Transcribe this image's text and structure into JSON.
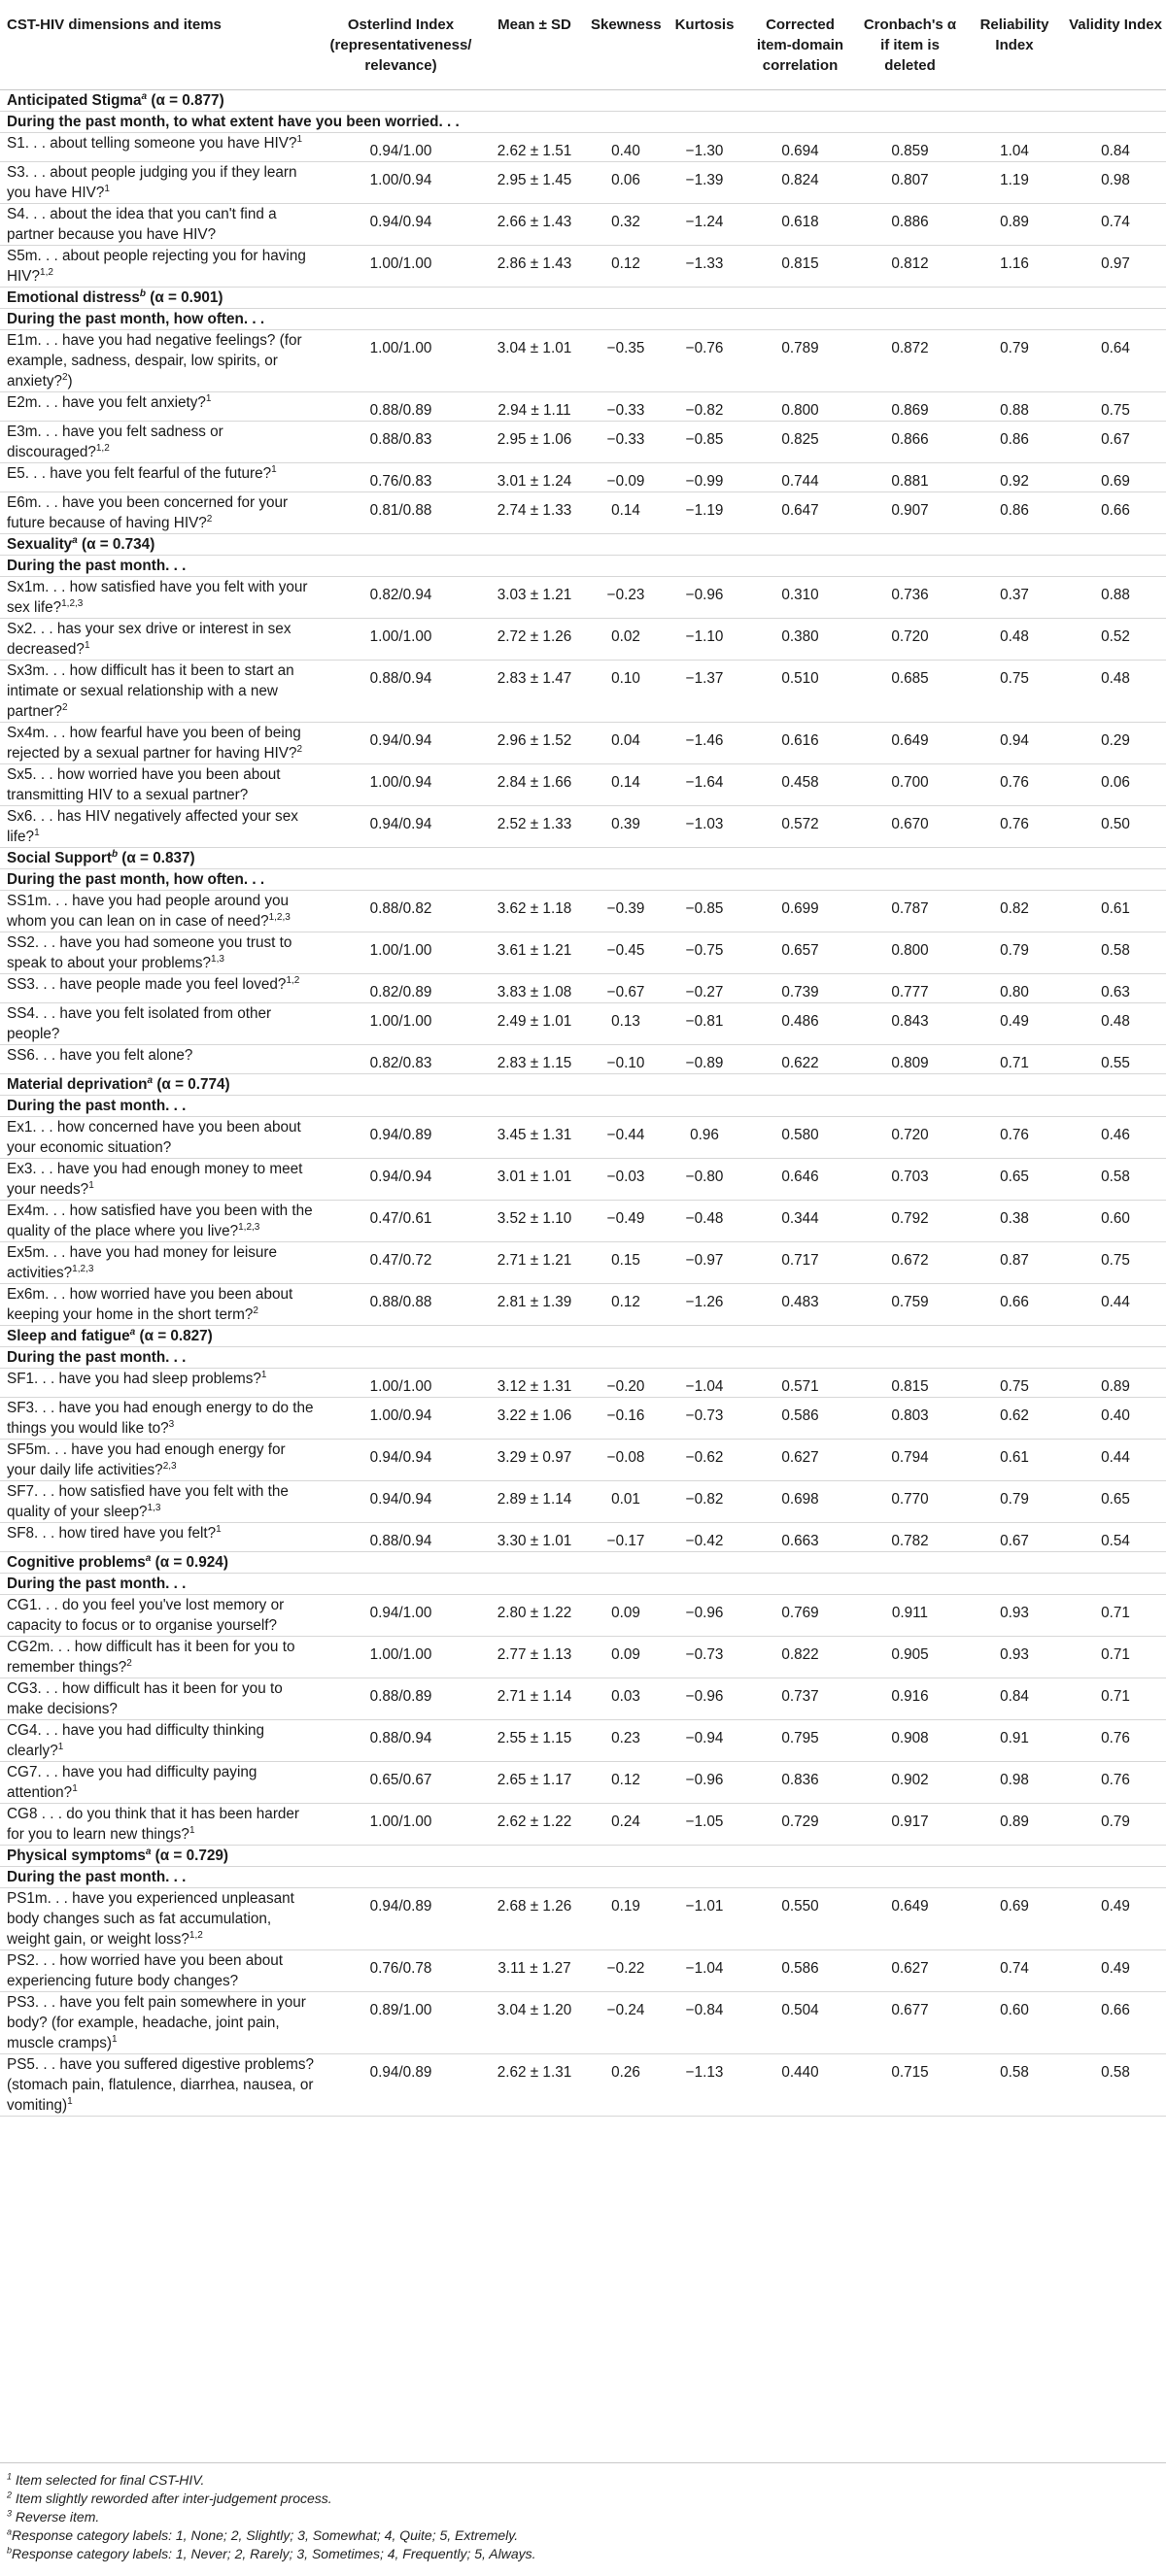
{
  "headers": {
    "item": "CST-HIV dimensions and items",
    "osterlind": "Osterlind Index (representativeness/ relevance)",
    "mean": "Mean ± SD",
    "skew": "Skewness",
    "kurt": "Kurtosis",
    "corr": "Corrected item-domain correlation",
    "alpha": "Cronbach's α if item is deleted",
    "rel": "Reliability Index",
    "val": "Validity Index"
  },
  "sections": [
    {
      "name": "Anticipated Stigma",
      "sup": "a",
      "alpha": " (α = 0.877)",
      "question": "During the past month, to what extent have you been worried. . .",
      "rows": [
        {
          "text": "S1. . . about telling someone you have HIV?",
          "sup": "1",
          "osterlind": "0.94/1.00",
          "mean": "2.62 ± 1.51",
          "skew": "0.40",
          "kurt": "−1.30",
          "corr": "0.694",
          "alpha": "0.859",
          "rel": "1.04",
          "val": "0.84"
        },
        {
          "text": "S3. . . about people judging you if they learn you have HIV?",
          "sup": "1",
          "osterlind": "1.00/0.94",
          "mean": "2.95 ± 1.45",
          "skew": "0.06",
          "kurt": "−1.39",
          "corr": "0.824",
          "alpha": "0.807",
          "rel": "1.19",
          "val": "0.98"
        },
        {
          "text": "S4. . . about the idea that you can't find a partner because you have HIV?",
          "sup": "",
          "osterlind": "0.94/0.94",
          "mean": "2.66 ± 1.43",
          "skew": "0.32",
          "kurt": "−1.24",
          "corr": "0.618",
          "alpha": "0.886",
          "rel": "0.89",
          "val": "0.74"
        },
        {
          "text": "S5m. . . about people rejecting you for having HIV?",
          "sup": "1,2",
          "osterlind": "1.00/1.00",
          "mean": "2.86 ± 1.43",
          "skew": "0.12",
          "kurt": "−1.33",
          "corr": "0.815",
          "alpha": "0.812",
          "rel": "1.16",
          "val": "0.97"
        }
      ]
    },
    {
      "name": "Emotional distress",
      "sup": "b",
      "alpha": " (α = 0.901)",
      "question": "During the past month, how often. . .",
      "rows": [
        {
          "text": "E1m. . . have you had negative feelings? (for example, sadness, despair, low spirits, or anxiety?",
          "sup": "2",
          "close": ")",
          "osterlind": "1.00/1.00",
          "mean": "3.04 ± 1.01",
          "skew": "−0.35",
          "kurt": "−0.76",
          "corr": "0.789",
          "alpha": "0.872",
          "rel": "0.79",
          "val": "0.64"
        },
        {
          "text": "E2m. . . have you felt anxiety?",
          "sup": "1",
          "osterlind": "0.88/0.89",
          "mean": "2.94 ± 1.11",
          "skew": "−0.33",
          "kurt": "−0.82",
          "corr": "0.800",
          "alpha": "0.869",
          "rel": "0.88",
          "val": "0.75"
        },
        {
          "text": "E3m. . . have you felt sadness or discouraged?",
          "sup": "1,2",
          "osterlind": "0.88/0.83",
          "mean": "2.95 ± 1.06",
          "skew": "−0.33",
          "kurt": "−0.85",
          "corr": "0.825",
          "alpha": "0.866",
          "rel": "0.86",
          "val": "0.67"
        },
        {
          "text": "E5. . . have you felt fearful of the future?",
          "sup": "1",
          "osterlind": "0.76/0.83",
          "mean": "3.01 ± 1.24",
          "skew": "−0.09",
          "kurt": "−0.99",
          "corr": "0.744",
          "alpha": "0.881",
          "rel": "0.92",
          "val": "0.69"
        },
        {
          "text": "E6m. . . have you been concerned for your future because of having HIV?",
          "sup": "2",
          "osterlind": "0.81/0.88",
          "mean": "2.74 ± 1.33",
          "skew": "0.14",
          "kurt": "−1.19",
          "corr": "0.647",
          "alpha": "0.907",
          "rel": "0.86",
          "val": "0.66"
        }
      ]
    },
    {
      "name": "Sexuality",
      "sup": "a",
      "alpha": " (α = 0.734)",
      "question": "During the past month. . .",
      "rows": [
        {
          "text": "Sx1m. . . how satisfied have you felt with your sex life?",
          "sup": "1,2,3",
          "osterlind": "0.82/0.94",
          "mean": "3.03 ± 1.21",
          "skew": "−0.23",
          "kurt": "−0.96",
          "corr": "0.310",
          "alpha": "0.736",
          "rel": "0.37",
          "val": "0.88"
        },
        {
          "text": "Sx2. . . has your sex drive or interest in sex decreased?",
          "sup": "1",
          "osterlind": "1.00/1.00",
          "mean": "2.72 ± 1.26",
          "skew": "0.02",
          "kurt": "−1.10",
          "corr": "0.380",
          "alpha": "0.720",
          "rel": "0.48",
          "val": "0.52"
        },
        {
          "text": "Sx3m. . . how difficult has it been to start an intimate or sexual relationship with a new partner?",
          "sup": "2",
          "osterlind": "0.88/0.94",
          "mean": "2.83 ± 1.47",
          "skew": "0.10",
          "kurt": "−1.37",
          "corr": "0.510",
          "alpha": "0.685",
          "rel": "0.75",
          "val": "0.48"
        },
        {
          "text": "Sx4m. . . how fearful have you been of being rejected by a sexual partner for having HIV?",
          "sup": "2",
          "osterlind": "0.94/0.94",
          "mean": "2.96 ± 1.52",
          "skew": "0.04",
          "kurt": "−1.46",
          "corr": "0.616",
          "alpha": "0.649",
          "rel": "0.94",
          "val": "0.29"
        },
        {
          "text": "Sx5. . . how worried have you been about transmitting HIV to a sexual partner?",
          "sup": "",
          "osterlind": "1.00/0.94",
          "mean": "2.84 ± 1.66",
          "skew": "0.14",
          "kurt": "−1.64",
          "corr": "0.458",
          "alpha": "0.700",
          "rel": "0.76",
          "val": "0.06"
        },
        {
          "text": "Sx6. . . has HIV negatively affected your sex life?",
          "sup": "1",
          "osterlind": "0.94/0.94",
          "mean": "2.52 ± 1.33",
          "skew": "0.39",
          "kurt": "−1.03",
          "corr": "0.572",
          "alpha": "0.670",
          "rel": "0.76",
          "val": "0.50"
        }
      ]
    },
    {
      "name": "Social Support",
      "sup": "b",
      "alpha": " (α = 0.837)",
      "question": "During the past month, how often. . .",
      "rows": [
        {
          "text": "SS1m. . . have you had people around you whom you can lean on in case of need?",
          "sup": "1,2,3",
          "osterlind": "0.88/0.82",
          "mean": "3.62 ± 1.18",
          "skew": "−0.39",
          "kurt": "−0.85",
          "corr": "0.699",
          "alpha": "0.787",
          "rel": "0.82",
          "val": "0.61"
        },
        {
          "text": "SS2. . . have you had someone you trust to speak to about your problems?",
          "sup": "1,3",
          "osterlind": "1.00/1.00",
          "mean": "3.61 ± 1.21",
          "skew": "−0.45",
          "kurt": "−0.75",
          "corr": "0.657",
          "alpha": "0.800",
          "rel": "0.79",
          "val": "0.58"
        },
        {
          "text": "SS3. . . have people made you feel loved?",
          "sup": "1,2",
          "osterlind": "0.82/0.89",
          "mean": "3.83 ± 1.08",
          "skew": "−0.67",
          "kurt": "−0.27",
          "corr": "0.739",
          "alpha": "0.777",
          "rel": "0.80",
          "val": "0.63"
        },
        {
          "text": "SS4. . . have you felt isolated from other people?",
          "sup": "",
          "osterlind": "1.00/1.00",
          "mean": "2.49 ± 1.01",
          "skew": "0.13",
          "kurt": "−0.81",
          "corr": "0.486",
          "alpha": "0.843",
          "rel": "0.49",
          "val": "0.48"
        },
        {
          "text": "SS6. . . have you felt alone?",
          "sup": "",
          "osterlind": "0.82/0.83",
          "mean": "2.83 ± 1.15",
          "skew": "−0.10",
          "kurt": "−0.89",
          "corr": "0.622",
          "alpha": "0.809",
          "rel": "0.71",
          "val": "0.55"
        }
      ]
    },
    {
      "name": "Material deprivation",
      "sup": "a",
      "alpha": " (α = 0.774)",
      "question": "During the past month. . .",
      "rows": [
        {
          "text": "Ex1. . . how concerned have you been about your economic situation?",
          "sup": "",
          "osterlind": "0.94/0.89",
          "mean": "3.45 ± 1.31",
          "skew": "−0.44",
          "kurt": "0.96",
          "corr": "0.580",
          "alpha": "0.720",
          "rel": "0.76",
          "val": "0.46"
        },
        {
          "text": "Ex3. . . have you had enough money to meet your needs?",
          "sup": "1",
          "osterlind": "0.94/0.94",
          "mean": "3.01 ± 1.01",
          "skew": "−0.03",
          "kurt": "−0.80",
          "corr": "0.646",
          "alpha": "0.703",
          "rel": "0.65",
          "val": "0.58"
        },
        {
          "text": "Ex4m. . . how satisfied have you been with the quality of the place where you live?",
          "sup": "1,2,3",
          "osterlind": "0.47/0.61",
          "mean": "3.52 ± 1.10",
          "skew": "−0.49",
          "kurt": "−0.48",
          "corr": "0.344",
          "alpha": "0.792",
          "rel": "0.38",
          "val": "0.60"
        },
        {
          "text": "Ex5m. . . have you had money for leisure activities?",
          "sup": "1,2,3",
          "osterlind": "0.47/0.72",
          "mean": "2.71 ± 1.21",
          "skew": "0.15",
          "kurt": "−0.97",
          "corr": "0.717",
          "alpha": "0.672",
          "rel": "0.87",
          "val": "0.75"
        },
        {
          "text": "Ex6m. . . how worried have you been about keeping your home in the short term?",
          "sup": "2",
          "osterlind": "0.88/0.88",
          "mean": "2.81 ± 1.39",
          "skew": "0.12",
          "kurt": "−1.26",
          "corr": "0.483",
          "alpha": "0.759",
          "rel": "0.66",
          "val": "0.44"
        }
      ]
    },
    {
      "name": "Sleep and fatigue",
      "sup": "a",
      "alpha": " (α = 0.827)",
      "question": "During the past month. . .",
      "rows": [
        {
          "text": "SF1. . . have you had sleep problems?",
          "sup": "1",
          "osterlind": "1.00/1.00",
          "mean": "3.12 ± 1.31",
          "skew": "−0.20",
          "kurt": "−1.04",
          "corr": "0.571",
          "alpha": "0.815",
          "rel": "0.75",
          "val": "0.89"
        },
        {
          "text": "SF3. . . have you had enough energy to do the things you would like to?",
          "sup": "3",
          "osterlind": "1.00/0.94",
          "mean": "3.22 ± 1.06",
          "skew": "−0.16",
          "kurt": "−0.73",
          "corr": "0.586",
          "alpha": "0.803",
          "rel": "0.62",
          "val": "0.40"
        },
        {
          "text": "SF5m. . . have you had enough energy for your daily life activities?",
          "sup": "2,3",
          "osterlind": "0.94/0.94",
          "mean": "3.29 ± 0.97",
          "skew": "−0.08",
          "kurt": "−0.62",
          "corr": "0.627",
          "alpha": "0.794",
          "rel": "0.61",
          "val": "0.44"
        },
        {
          "text": "SF7. . . how satisfied have you felt with the quality of your sleep?",
          "sup": "1,3",
          "osterlind": "0.94/0.94",
          "mean": "2.89 ± 1.14",
          "skew": "0.01",
          "kurt": "−0.82",
          "corr": "0.698",
          "alpha": "0.770",
          "rel": "0.79",
          "val": "0.65"
        },
        {
          "text": "SF8. . . how tired have you felt?",
          "sup": "1",
          "osterlind": "0.88/0.94",
          "mean": "3.30 ± 1.01",
          "skew": "−0.17",
          "kurt": "−0.42",
          "corr": "0.663",
          "alpha": "0.782",
          "rel": "0.67",
          "val": "0.54"
        }
      ]
    },
    {
      "name": "Cognitive problems",
      "sup": "a",
      "alpha": " (α = 0.924)",
      "question": "During the past month. . .",
      "rows": [
        {
          "text": "CG1. . . do you feel you've lost memory or capacity to focus or to organise yourself?",
          "sup": "",
          "osterlind": "0.94/1.00",
          "mean": "2.80 ± 1.22",
          "skew": "0.09",
          "kurt": "−0.96",
          "corr": "0.769",
          "alpha": "0.911",
          "rel": "0.93",
          "val": "0.71"
        },
        {
          "text": "CG2m. . . how difficult has it been for you to remember things?",
          "sup": "2",
          "osterlind": "1.00/1.00",
          "mean": "2.77 ± 1.13",
          "skew": "0.09",
          "kurt": "−0.73",
          "corr": "0.822",
          "alpha": "0.905",
          "rel": "0.93",
          "val": "0.71"
        },
        {
          "text": "CG3. . . how difficult has it been for you to make decisions?",
          "sup": "",
          "osterlind": "0.88/0.89",
          "mean": "2.71 ± 1.14",
          "skew": "0.03",
          "kurt": "−0.96",
          "corr": "0.737",
          "alpha": "0.916",
          "rel": "0.84",
          "val": "0.71"
        },
        {
          "text": "CG4. . . have you had difficulty thinking clearly?",
          "sup": "1",
          "osterlind": "0.88/0.94",
          "mean": "2.55 ± 1.15",
          "skew": "0.23",
          "kurt": "−0.94",
          "corr": "0.795",
          "alpha": "0.908",
          "rel": "0.91",
          "val": "0.76"
        },
        {
          "text": "CG7. . . have you had difficulty paying attention?",
          "sup": "1",
          "osterlind": "0.65/0.67",
          "mean": "2.65 ± 1.17",
          "skew": "0.12",
          "kurt": "−0.96",
          "corr": "0.836",
          "alpha": "0.902",
          "rel": "0.98",
          "val": "0.76"
        },
        {
          "text": "CG8 . . . do you think that it has been harder for you to learn new things?",
          "sup": "1",
          "osterlind": "1.00/1.00",
          "mean": "2.62 ± 1.22",
          "skew": "0.24",
          "kurt": "−1.05",
          "corr": "0.729",
          "alpha": "0.917",
          "rel": "0.89",
          "val": "0.79"
        }
      ]
    },
    {
      "name": "Physical symptoms",
      "sup": "a",
      "alpha": " (α = 0.729)",
      "question": "During the past month. . .",
      "rows": [
        {
          "text": "PS1m. . . have you experienced unpleasant body changes such as fat accumulation, weight gain, or weight loss?",
          "sup": "1,2",
          "osterlind": "0.94/0.89",
          "mean": "2.68 ± 1.26",
          "skew": "0.19",
          "kurt": "−1.01",
          "corr": "0.550",
          "alpha": "0.649",
          "rel": "0.69",
          "val": "0.49"
        },
        {
          "text": "PS2. . . how worried have you been about experiencing future body changes?",
          "sup": "",
          "osterlind": "0.76/0.78",
          "mean": "3.11 ± 1.27",
          "skew": "−0.22",
          "kurt": "−1.04",
          "corr": "0.586",
          "alpha": "0.627",
          "rel": "0.74",
          "val": "0.49"
        },
        {
          "text": "PS3. . . have you felt pain somewhere in your body? (for example, headache, joint pain, muscle cramps)",
          "sup": "1",
          "osterlind": "0.89/1.00",
          "mean": "3.04 ± 1.20",
          "skew": "−0.24",
          "kurt": "−0.84",
          "corr": "0.504",
          "alpha": "0.677",
          "rel": "0.60",
          "val": "0.66"
        },
        {
          "text": "PS5. . . have you suffered digestive problems? (stomach pain, flatulence, diarrhea, nausea, or vomiting)",
          "sup": "1",
          "osterlind": "0.94/0.89",
          "mean": "2.62 ± 1.31",
          "skew": "0.26",
          "kurt": "−1.13",
          "corr": "0.440",
          "alpha": "0.715",
          "rel": "0.58",
          "val": "0.58"
        }
      ]
    }
  ],
  "footnotes": [
    {
      "mark": "1",
      "text": " Item selected for final CST-HIV."
    },
    {
      "mark": "2",
      "text": " Item slightly reworded after inter-judgement process."
    },
    {
      "mark": "3",
      "text": " Reverse item."
    },
    {
      "mark": "a",
      "text": "Response category labels: 1, None; 2, Slightly; 3, Somewhat; 4, Quite; 5, Extremely."
    },
    {
      "mark": "b",
      "text": "Response category labels: 1, Never; 2, Rarely; 3, Sometimes; 4, Frequently; 5, Always."
    }
  ]
}
